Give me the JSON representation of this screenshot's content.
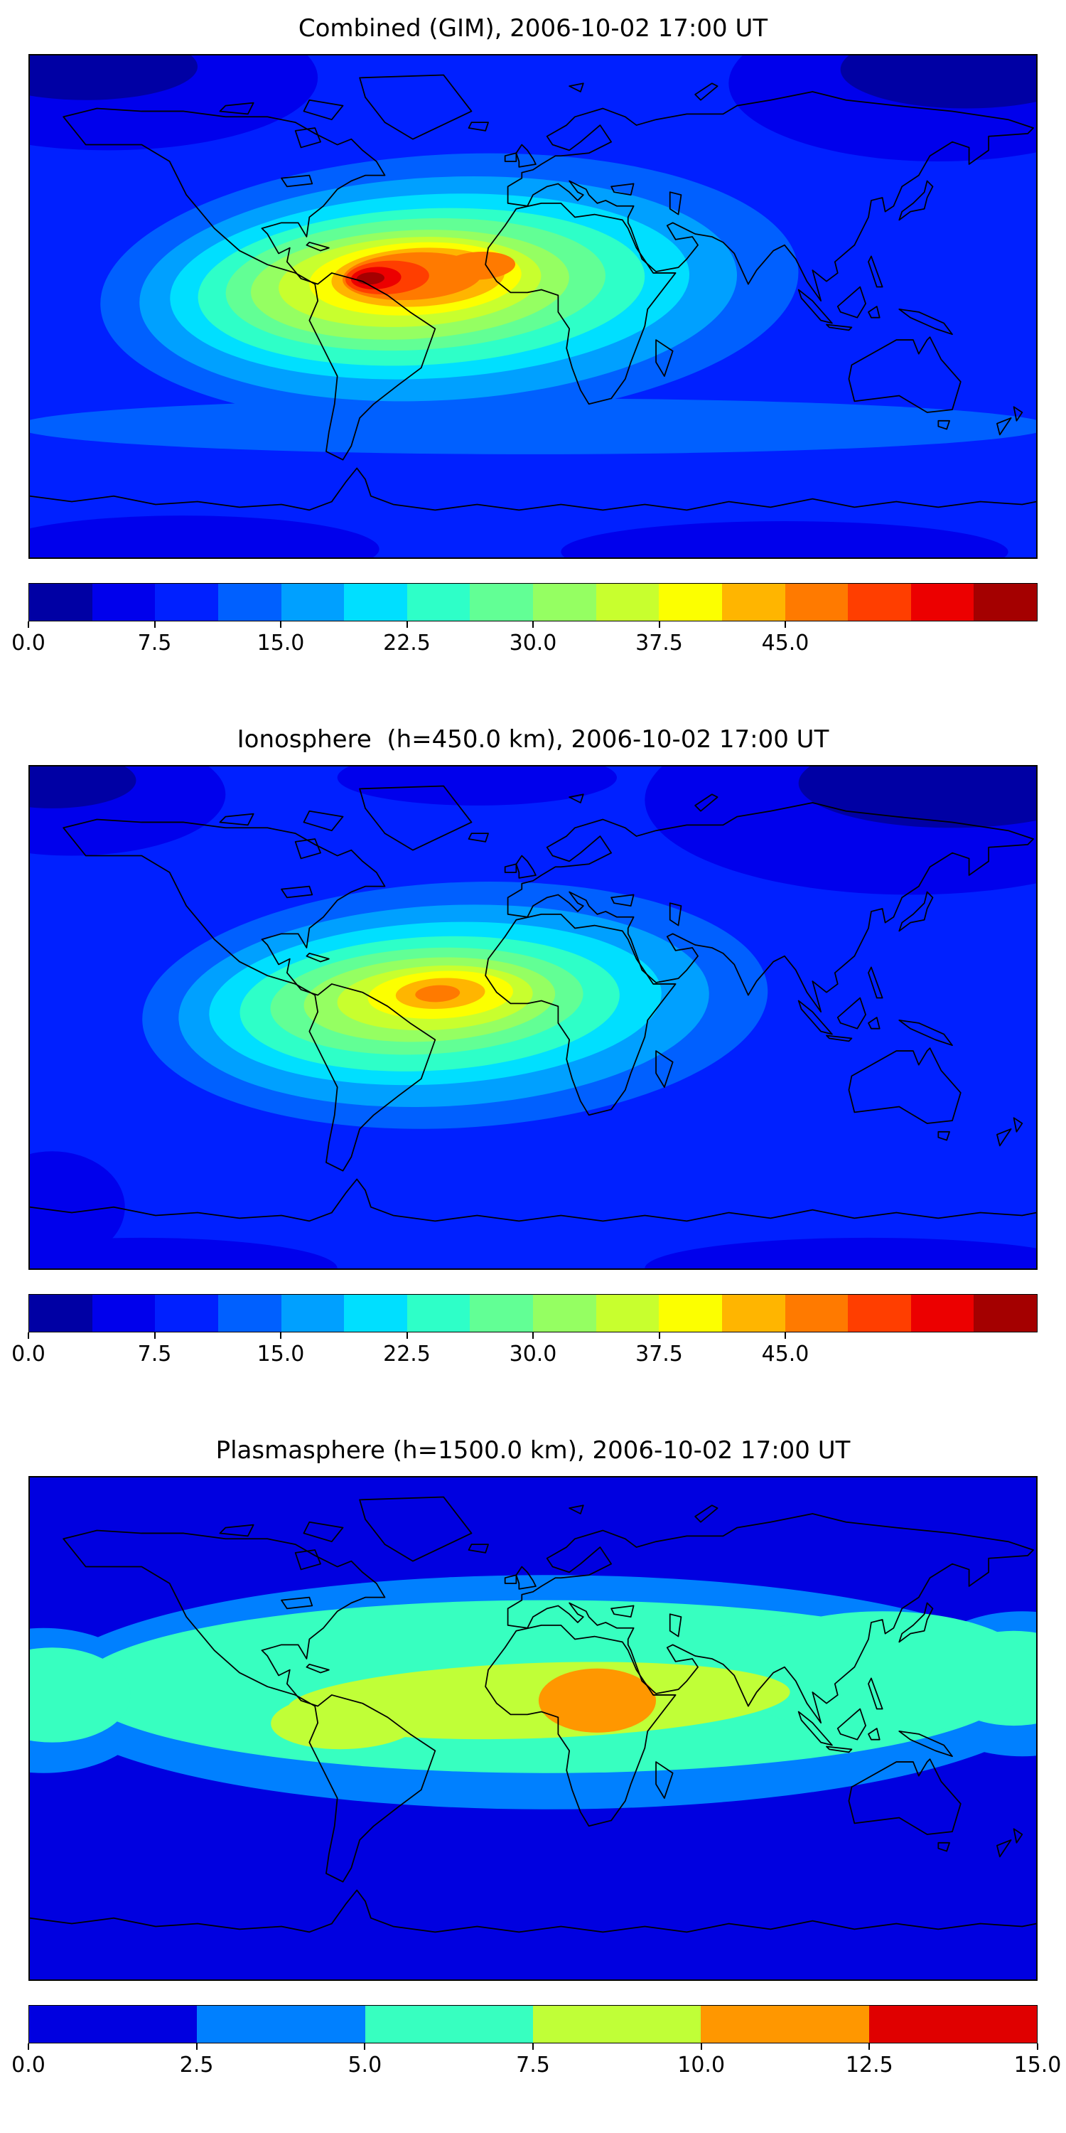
{
  "figure": {
    "panels": [
      {
        "title": "Combined (GIM), 2006-10-02 17:00 UT",
        "colorbar": {
          "ticks": [
            "0.0",
            "7.5",
            "15.0",
            "22.5",
            "30.0",
            "37.5",
            "45.0"
          ],
          "tick_positions_pct": [
            0,
            12.5,
            25,
            37.5,
            50,
            62.5,
            75
          ],
          "colors": [
            "#0000a4",
            "#0000ec",
            "#0020ff",
            "#0060ff",
            "#00a0ff",
            "#00dfff",
            "#2effc8",
            "#62ff95",
            "#95ff62",
            "#c8ff2e",
            "#fcff00",
            "#ffb500",
            "#ff7a00",
            "#ff3e00",
            "#ec0000",
            "#a40000"
          ]
        }
      },
      {
        "title": "Ionosphere  (h=450.0 km), 2006-10-02 17:00 UT",
        "colorbar": {
          "ticks": [
            "0.0",
            "7.5",
            "15.0",
            "22.5",
            "30.0",
            "37.5",
            "45.0"
          ],
          "tick_positions_pct": [
            0,
            12.5,
            25,
            37.5,
            50,
            62.5,
            75
          ],
          "colors": [
            "#0000a4",
            "#0000ec",
            "#0020ff",
            "#0060ff",
            "#00a0ff",
            "#00dfff",
            "#2effc8",
            "#62ff95",
            "#95ff62",
            "#c8ff2e",
            "#fcff00",
            "#ffb500",
            "#ff7a00",
            "#ff3e00",
            "#ec0000",
            "#a40000"
          ]
        }
      },
      {
        "title": "Plasmasphere (h=1500.0 km), 2006-10-02 17:00 UT",
        "colorbar": {
          "ticks": [
            "0.0",
            "2.5",
            "5.0",
            "7.5",
            "10.0",
            "12.5",
            "15.0"
          ],
          "tick_positions_pct": [
            0,
            16.667,
            33.333,
            50,
            66.667,
            83.333,
            100
          ],
          "colors": [
            "#0000e0",
            "#0080ff",
            "#37ffc0",
            "#c0ff37",
            "#ff9700",
            "#e00000"
          ]
        }
      }
    ]
  },
  "chart_data": [
    {
      "type": "heatmap",
      "title": "Combined (GIM), 2006-10-02 17:00 UT",
      "projection": "equirectangular world map with coastlines",
      "lon_range": [
        -180,
        180
      ],
      "lat_range": [
        -90,
        90
      ],
      "colormap": "jet, 16 discrete contour levels",
      "value_range": [
        0,
        60
      ],
      "colorbar_ticks": [
        0.0,
        7.5,
        15.0,
        22.5,
        30.0,
        37.5,
        45.0
      ],
      "features": [
        {
          "feature": "primary maximum (dark red core)",
          "lon": -58,
          "lat": 7,
          "value_approx": 50
        },
        {
          "feature": "orange lobe over equatorial Atlantic / west Africa",
          "lon": -20,
          "lat": 10,
          "value_approx": 40
        },
        {
          "feature": "enhanced yellow-green band",
          "lon_span": [
            -110,
            40
          ],
          "lat_span": [
            -20,
            25
          ],
          "value_approx": "22-37"
        },
        {
          "feature": "cyan/light-blue halo",
          "lon_span": [
            -140,
            80
          ],
          "lat_span": [
            -40,
            40
          ],
          "value_approx": "13-22"
        },
        {
          "feature": "dark navy high-latitude minima (NW corner and NE Asia)",
          "value_approx": "2-7"
        },
        {
          "feature": "background mid-blue field",
          "value_approx": "8-12"
        }
      ]
    },
    {
      "type": "heatmap",
      "title": "Ionosphere  (h=450.0 km), 2006-10-02 17:00 UT",
      "projection": "equirectangular world map with coastlines",
      "lon_range": [
        -180,
        180
      ],
      "lat_range": [
        -90,
        90
      ],
      "colormap": "jet, 16 discrete contour levels",
      "value_range": [
        0,
        60
      ],
      "colorbar_ticks": [
        0.0,
        7.5,
        15.0,
        22.5,
        30.0,
        37.5,
        45.0
      ],
      "features": [
        {
          "feature": "primary maximum (orange/yellow core over S. America - Atlantic)",
          "lon": -35,
          "lat": 6,
          "value_approx": 33
        },
        {
          "feature": "green enhanced band",
          "lon_span": [
            -95,
            25
          ],
          "lat_span": [
            -15,
            20
          ],
          "value_approx": "18-28"
        },
        {
          "feature": "cyan halo extending toward Africa/India",
          "value_approx": "12-18"
        },
        {
          "feature": "dark navy minima (Arctic, NE Asia, top corners)",
          "value_approx": "2-6"
        },
        {
          "feature": "background mid-blue field",
          "value_approx": "7-11"
        }
      ]
    },
    {
      "type": "heatmap",
      "title": "Plasmasphere (h=1500.0 km), 2006-10-02 17:00 UT",
      "projection": "equirectangular world map with coastlines",
      "lon_range": [
        -180,
        180
      ],
      "lat_range": [
        -90,
        90
      ],
      "colormap": "jet, 6 discrete contour levels",
      "value_range": [
        0,
        15
      ],
      "colorbar_ticks": [
        0.0,
        2.5,
        5.0,
        7.5,
        10.0,
        12.5,
        15.0
      ],
      "features": [
        {
          "feature": "orange maximum over central Africa",
          "lon": 23,
          "lat": 10,
          "value_approx": 11
        },
        {
          "feature": "yellow-green equatorial band (S. America to India)",
          "lon_span": [
            -90,
            90
          ],
          "lat_span": [
            -5,
            18
          ],
          "value_approx": "7.5-10"
        },
        {
          "feature": "turquoise low-mid latitude band spanning full globe",
          "lat_span": [
            -20,
            45
          ],
          "value_approx": "5-7.5"
        },
        {
          "feature": "light-blue transition ring",
          "value_approx": "2.5-5"
        },
        {
          "feature": "deep blue polar background",
          "value_approx": "0-2.5"
        }
      ]
    }
  ]
}
